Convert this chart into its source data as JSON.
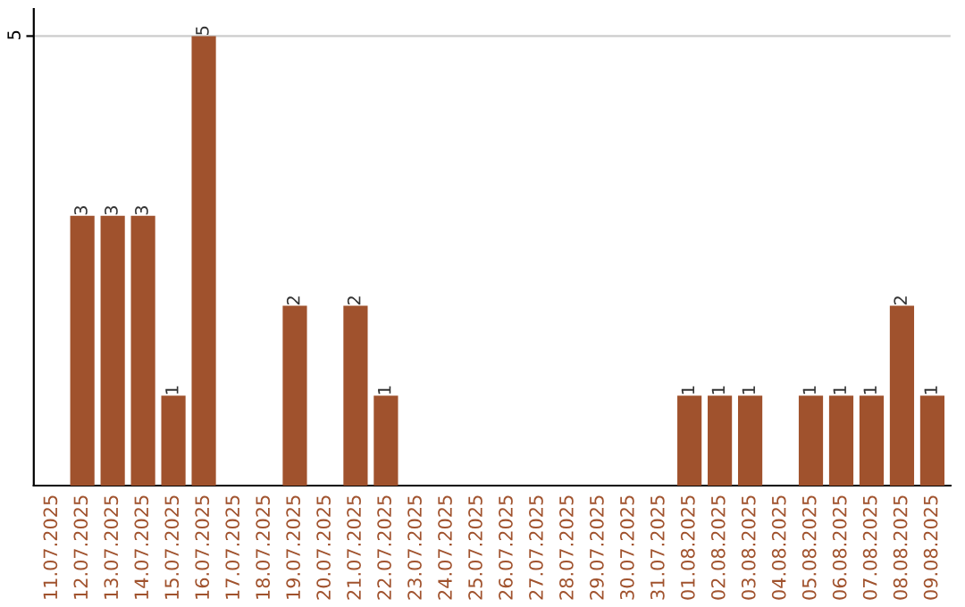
{
  "chart_data": {
    "type": "bar",
    "categories": [
      "11.07.2025",
      "12.07.2025",
      "13.07.2025",
      "14.07.2025",
      "15.07.2025",
      "16.07.2025",
      "17.07.2025",
      "18.07.2025",
      "19.07.2025",
      "20.07.2025",
      "21.07.2025",
      "22.07.2025",
      "23.07.2025",
      "24.07.2025",
      "25.07.2025",
      "26.07.2025",
      "27.07.2025",
      "28.07.2025",
      "29.07.2025",
      "30.07.2025",
      "31.07.2025",
      "01.08.2025",
      "02.08.2025",
      "03.08.2025",
      "04.08.2025",
      "05.08.2025",
      "06.08.2025",
      "07.08.2025",
      "08.08.2025",
      "09.08.2025"
    ],
    "values": [
      0,
      3,
      3,
      3,
      1,
      5,
      0,
      0,
      2,
      0,
      2,
      1,
      0,
      0,
      0,
      0,
      0,
      0,
      0,
      0,
      0,
      1,
      1,
      1,
      0,
      1,
      1,
      1,
      2,
      1
    ],
    "value_labels": [
      null,
      "3",
      "3",
      "3",
      "1",
      "5",
      null,
      null,
      "2",
      null,
      "2",
      "1",
      null,
      null,
      null,
      null,
      null,
      null,
      null,
      null,
      null,
      "1",
      "1",
      "1",
      null,
      "1",
      "1",
      "1",
      "2",
      "1"
    ],
    "color": "#a0522d",
    "ylim": [
      0,
      5.3
    ],
    "yticks": [
      5
    ],
    "grid": "y"
  }
}
